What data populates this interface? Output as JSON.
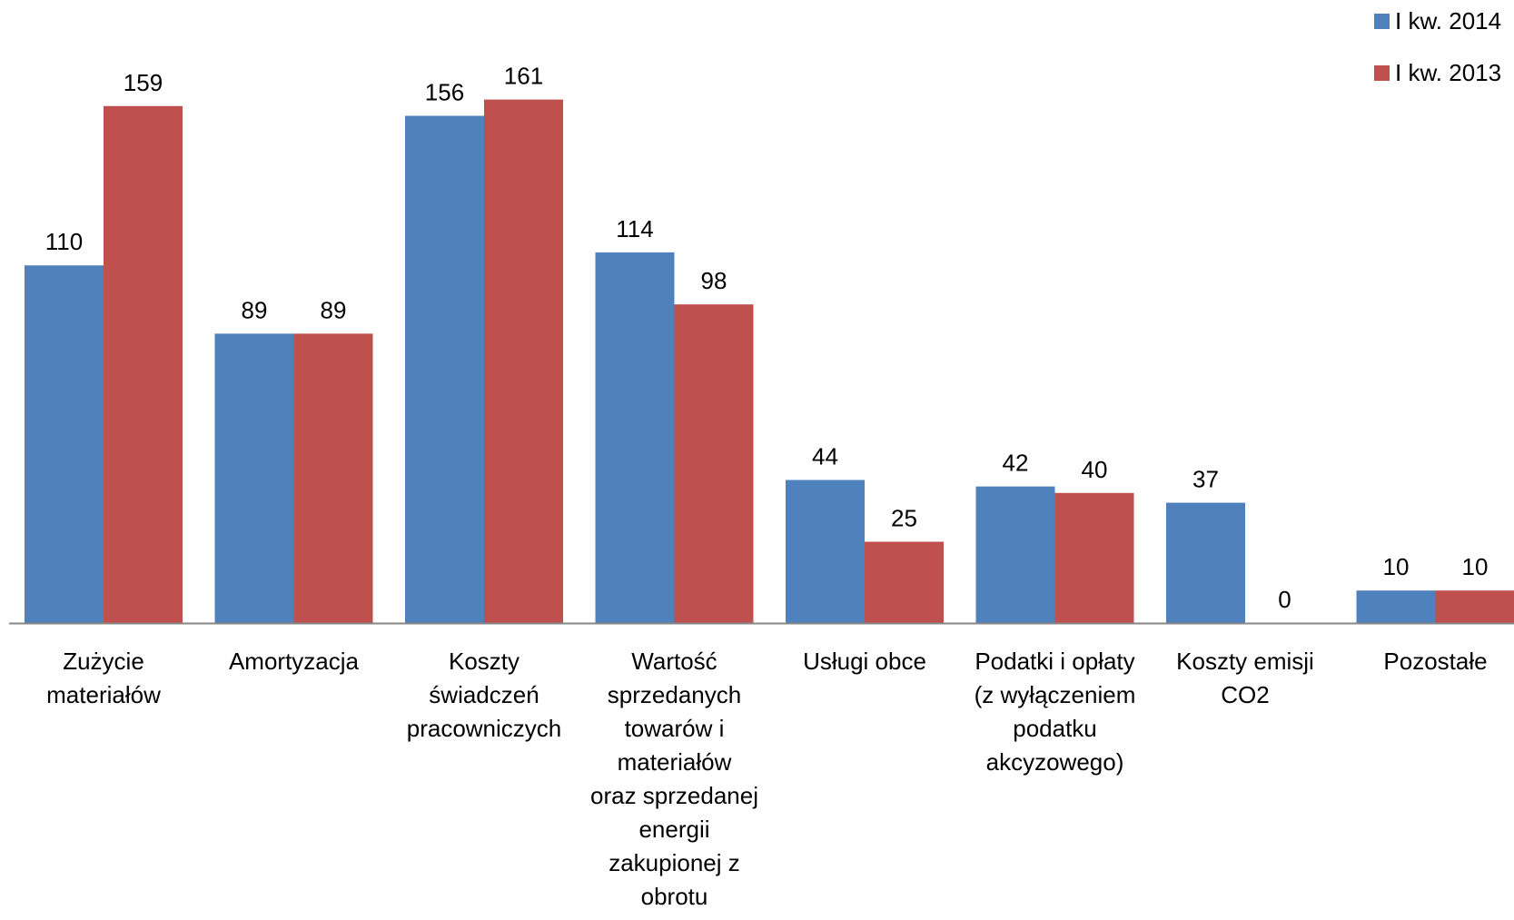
{
  "chart_data": {
    "type": "bar",
    "categories": [
      "Zużycie materiałów",
      "Amortyzacja",
      "Koszty świadczeń pracowniczych",
      "Wartość sprzedanych towarów i materiałów oraz sprzedanej energii zakupionej z obrotu",
      "Usługi obce",
      "Podatki i opłaty (z wyłączeniem podatku akcyzowego)",
      "Koszty emisji CO2",
      "Pozostałe"
    ],
    "series": [
      {
        "name": "I kw. 2014",
        "color": "#4F81BD",
        "values": [
          110,
          89,
          156,
          114,
          44,
          42,
          37,
          10
        ]
      },
      {
        "name": "I kw. 2013",
        "color": "#C0504D",
        "values": [
          159,
          89,
          161,
          98,
          25,
          40,
          0,
          10
        ]
      }
    ],
    "ylim": [
      0,
      161
    ],
    "grid": false,
    "legend": "top-right",
    "title": "",
    "xlabel": "",
    "ylabel": ""
  }
}
